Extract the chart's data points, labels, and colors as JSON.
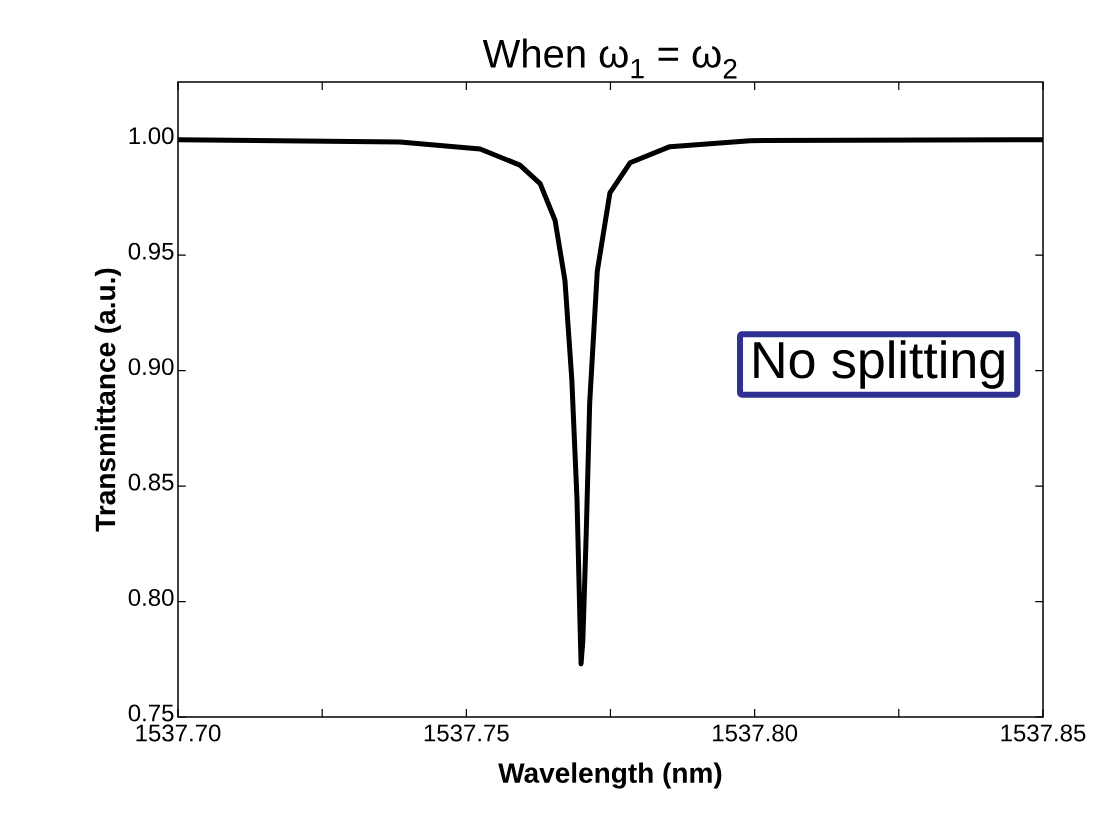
{
  "chart_data": {
    "type": "line",
    "title": "When ω$_{1}$ = ω$_{2}$",
    "xlabel": "Wavelength (nm)",
    "ylabel": "Transmittance (a.u.)",
    "annotations": [
      "No splitting"
    ],
    "x": [
      1537.7,
      1537.7385,
      1537.7524,
      1537.7593,
      1537.7628,
      1537.7654,
      1537.7671,
      1537.7683,
      1537.7692,
      1537.7697,
      1537.7699,
      1537.7702,
      1537.7708,
      1537.7714,
      1537.7727,
      1537.7749,
      1537.7784,
      1537.7853,
      1537.7992,
      1537.85
    ],
    "series": [
      {
        "color": "#000000",
        "values": [
          1.0,
          0.999,
          0.996,
          0.989,
          0.981,
          0.965,
          0.939,
          0.896,
          0.844,
          0.792,
          0.773,
          0.783,
          0.83,
          0.886,
          0.943,
          0.977,
          0.99,
          0.997,
          0.9996,
          1.0
        ]
      }
    ],
    "xlim": [
      1537.7,
      1537.85
    ],
    "ylim": [
      0.75,
      1.025
    ],
    "xticks": [
      {
        "value": 1537.7,
        "label": "1537.70"
      },
      {
        "value": 1537.725,
        "label": null
      },
      {
        "value": 1537.75,
        "label": "1537.75"
      },
      {
        "value": 1537.775,
        "label": null
      },
      {
        "value": 1537.8,
        "label": "1537.80"
      },
      {
        "value": 1537.825,
        "label": null
      },
      {
        "value": 1537.85,
        "label": "1537.85"
      }
    ],
    "yticks": [
      {
        "value": 0.75,
        "label": "0.75"
      },
      {
        "value": 0.8,
        "label": "0.80"
      },
      {
        "value": 0.85,
        "label": "0.85"
      },
      {
        "value": 0.9,
        "label": "0.90"
      },
      {
        "value": 0.95,
        "label": "0.95"
      },
      {
        "value": 1.0,
        "label": "1.00"
      }
    ]
  }
}
